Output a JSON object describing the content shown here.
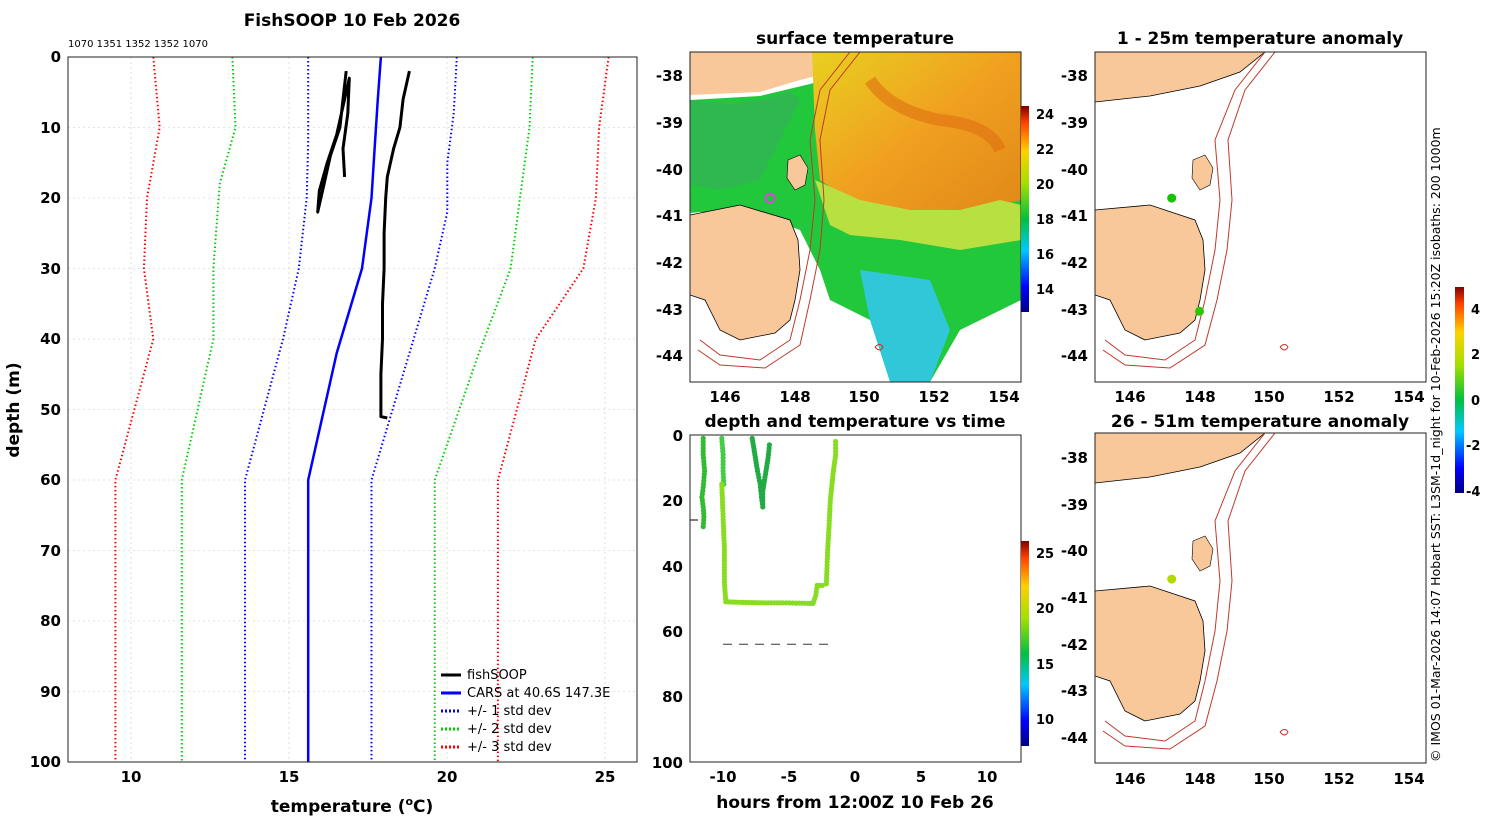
{
  "colors": {
    "fishsoop": "#000000",
    "cars_mean": "#0000ff",
    "std1": "#0000ff",
    "std2": "#00cc00",
    "std3": "#ff0000",
    "land": "#f8c89a",
    "isobath": "#c0392b"
  },
  "profile_chart": {
    "title": "FishSOOP 10 Feb 2026",
    "top_annotation": "1070 1351 1352 1352 1070",
    "xlabel_prefix": "temperature (",
    "xlabel_unit": "o",
    "xlabel_suffix": "C)",
    "ylabel": "depth (m)"
  },
  "surface_map": {
    "title": "surface temperature"
  },
  "time_chart": {
    "title": "depth and temperature vs time",
    "xlabel": "hours from 12:00Z 10 Feb 26"
  },
  "anom_map_top": {
    "title": "1 - 25m temperature anomaly"
  },
  "anom_map_bottom": {
    "title": "26 - 51m temperature anomaly"
  },
  "side_caption": "© IMOS 01-Mar-2026 14:07 Hobart SST: L3SM-1d_night for 10-Feb-2026 15:20Z isobaths: 200  1000m",
  "chart_data": [
    {
      "type": "line",
      "name": "temperature profile",
      "title": "FishSOOP 10 Feb 2026",
      "xlabel": "temperature (oC)",
      "ylabel": "depth (m)",
      "xlim": [
        8,
        26
      ],
      "ylim": [
        100,
        0
      ],
      "x_ticks": [
        10,
        15,
        20,
        25
      ],
      "y_ticks": [
        0,
        10,
        20,
        30,
        40,
        50,
        60,
        70,
        80,
        90,
        100
      ],
      "grid": true,
      "legend_position": "bottom-right",
      "series": [
        {
          "name": "fishSOOP",
          "style": "solid",
          "color": "#000000",
          "width": 3,
          "points": [
            [
              16.8,
              2
            ],
            [
              16.7,
              6
            ],
            [
              16.6,
              10
            ],
            [
              16.3,
              14
            ],
            [
              16.1,
              18
            ],
            [
              15.9,
              22
            ],
            [
              15.95,
              19
            ],
            [
              16.2,
              15
            ],
            [
              16.5,
              11
            ],
            [
              16.7,
              7
            ],
            [
              16.9,
              3
            ],
            [
              16.85,
              8
            ],
            [
              16.7,
              13
            ],
            [
              16.75,
              17
            ]
          ]
        },
        {
          "name": "fishSOOP",
          "style": "solid",
          "color": "#000000",
          "width": 3,
          "points": [
            [
              18.8,
              2
            ],
            [
              18.6,
              6
            ],
            [
              18.5,
              10
            ],
            [
              18.3,
              13
            ],
            [
              18.1,
              17
            ],
            [
              18.05,
              20
            ],
            [
              18.0,
              25
            ],
            [
              18.0,
              30
            ],
            [
              17.95,
              35
            ],
            [
              17.95,
              40
            ],
            [
              17.9,
              45
            ],
            [
              17.9,
              51
            ],
            [
              18.1,
              51.2
            ]
          ]
        },
        {
          "name": "CARS at 40.6S 147.3E",
          "style": "solid",
          "color": "#0000ff",
          "width": 2.5,
          "points": [
            [
              17.9,
              0
            ],
            [
              17.8,
              6
            ],
            [
              17.7,
              13
            ],
            [
              17.6,
              20
            ],
            [
              17.3,
              30
            ],
            [
              16.5,
              42
            ],
            [
              15.6,
              60
            ],
            [
              15.6,
              100
            ]
          ]
        },
        {
          "name": "+/- 1 std dev",
          "style": "dotted",
          "color": "#0000ff",
          "width": 2,
          "points": [
            [
              15.6,
              0
            ],
            [
              15.6,
              12
            ],
            [
              15.55,
              20
            ],
            [
              15.3,
              30
            ],
            [
              14.8,
              40
            ],
            [
              13.6,
              60
            ],
            [
              13.6,
              100
            ]
          ]
        },
        {
          "name": "+/- 1 std dev",
          "style": "dotted",
          "color": "#0000ff",
          "width": 2,
          "points": [
            [
              20.3,
              0
            ],
            [
              20.2,
              8
            ],
            [
              20.0,
              15
            ],
            [
              20.0,
              22
            ],
            [
              19.6,
              30
            ],
            [
              18.6,
              45
            ],
            [
              17.6,
              60
            ],
            [
              17.6,
              100
            ]
          ]
        },
        {
          "name": "+/- 2 std dev",
          "style": "dotted",
          "color": "#00cc00",
          "width": 2,
          "points": [
            [
              13.2,
              0
            ],
            [
              13.3,
              10
            ],
            [
              12.8,
              18
            ],
            [
              12.6,
              30
            ],
            [
              12.6,
              40
            ],
            [
              11.6,
              60
            ],
            [
              11.6,
              100
            ]
          ]
        },
        {
          "name": "+/- 2 std dev",
          "style": "dotted",
          "color": "#00cc00",
          "width": 2,
          "points": [
            [
              22.7,
              0
            ],
            [
              22.6,
              10
            ],
            [
              22.3,
              20
            ],
            [
              22.0,
              30
            ],
            [
              21.0,
              42
            ],
            [
              19.6,
              60
            ],
            [
              19.6,
              100
            ]
          ]
        },
        {
          "name": "+/- 3 std dev",
          "style": "dotted",
          "color": "#ff0000",
          "width": 2,
          "points": [
            [
              10.7,
              0
            ],
            [
              10.9,
              10
            ],
            [
              10.5,
              20
            ],
            [
              10.4,
              30
            ],
            [
              10.7,
              40
            ],
            [
              9.5,
              60
            ],
            [
              9.5,
              100
            ]
          ]
        },
        {
          "name": "+/- 3 std dev",
          "style": "dotted",
          "color": "#ff0000",
          "width": 2,
          "points": [
            [
              25.1,
              0
            ],
            [
              24.8,
              10
            ],
            [
              24.7,
              20
            ],
            [
              24.3,
              30
            ],
            [
              22.8,
              40
            ],
            [
              21.6,
              60
            ],
            [
              21.6,
              100
            ]
          ]
        }
      ],
      "legend": [
        {
          "label": "fishSOOP",
          "style": "solid",
          "color": "#000000"
        },
        {
          "label": "CARS at 40.6S 147.3E",
          "style": "solid",
          "color": "#0000ff"
        },
        {
          "label": "+/- 1 std dev",
          "style": "dotted",
          "color": "#0000ff"
        },
        {
          "label": "+/- 2 std dev",
          "style": "dotted",
          "color": "#00cc00"
        },
        {
          "label": "+/- 3 std dev",
          "style": "dotted",
          "color": "#ff0000"
        }
      ]
    },
    {
      "type": "heatmap",
      "name": "surface temperature map",
      "title": "surface temperature",
      "xlim": [
        145,
        154.5
      ],
      "ylim": [
        -44.5,
        -37.5
      ],
      "x_ticks": [
        146,
        148,
        150,
        152,
        154
      ],
      "y_ticks": [
        -38,
        -39,
        -40,
        -41,
        -42,
        -43,
        -44
      ],
      "colorbar": {
        "min": 12.5,
        "max": 25,
        "ticks": [
          14,
          16,
          18,
          20,
          22,
          24
        ]
      },
      "marker": {
        "lon": 147.3,
        "lat": -40.6,
        "color": "#e040e0",
        "shape": "open circle"
      }
    },
    {
      "type": "scatter",
      "name": "depth and temperature vs time",
      "title": "depth and temperature vs time",
      "xlabel": "hours from 12:00Z 10 Feb 26",
      "xlim": [
        -12.5,
        12.5
      ],
      "ylim": [
        100,
        0
      ],
      "x_ticks": [
        -10,
        -5,
        0,
        5,
        10
      ],
      "y_ticks": [
        0,
        20,
        40,
        60,
        80,
        100
      ],
      "colorbar": {
        "min": 7.5,
        "max": 26,
        "ticks": [
          10,
          15,
          20,
          25
        ]
      },
      "series": [
        {
          "name": "drop 1",
          "color": "#33bb33",
          "points": [
            [
              -11.5,
              1
            ],
            [
              -11.5,
              6
            ],
            [
              -11.4,
              11
            ],
            [
              -11.5,
              16
            ],
            [
              -11.6,
              19
            ],
            [
              -11.5,
              22
            ],
            [
              -11.45,
              25
            ],
            [
              -11.5,
              28
            ]
          ]
        },
        {
          "name": "drop 2",
          "color": "#44cc44",
          "points": [
            [
              -10.1,
              1
            ],
            [
              -10.0,
              6
            ],
            [
              -10.0,
              11
            ],
            [
              -9.95,
              15
            ]
          ]
        },
        {
          "name": "drop 3",
          "color": "#22aa44",
          "points": [
            [
              -7.8,
              1
            ],
            [
              -7.6,
              6
            ],
            [
              -7.4,
              11
            ],
            [
              -7.2,
              15
            ],
            [
              -7.1,
              19
            ],
            [
              -7.0,
              22
            ],
            [
              -7.0,
              17
            ],
            [
              -6.8,
              12
            ],
            [
              -6.6,
              7
            ],
            [
              -6.5,
              3
            ]
          ]
        },
        {
          "name": "haul",
          "color": "#88dd22",
          "points": [
            [
              -10.1,
              15
            ],
            [
              -10.0,
              25
            ],
            [
              -9.9,
              35
            ],
            [
              -9.9,
              45
            ],
            [
              -9.8,
              51
            ],
            [
              -8.5,
              51.2
            ],
            [
              -7,
              51.3
            ],
            [
              -5.5,
              51.3
            ],
            [
              -4.5,
              51.4
            ],
            [
              -3.2,
              51.5
            ],
            [
              -3.0,
              49
            ],
            [
              -2.9,
              46
            ],
            [
              -2.5,
              46
            ],
            [
              -2.2,
              45.5
            ],
            [
              -2.1,
              35
            ],
            [
              -2.0,
              28
            ],
            [
              -1.9,
              20
            ],
            [
              -1.7,
              12
            ],
            [
              -1.5,
              6
            ],
            [
              -1.5,
              2
            ]
          ]
        }
      ],
      "reference_line": {
        "depth": 64,
        "from_hour": -10,
        "to_hour": -2,
        "style": "dashed"
      },
      "extra_tick": {
        "depth": 26,
        "side": "left"
      }
    },
    {
      "type": "scatter",
      "name": "1 - 25m temperature anomaly",
      "title": "1 - 25m temperature anomaly",
      "xlim": [
        145,
        154.5
      ],
      "ylim": [
        -44.5,
        -37.5
      ],
      "x_ticks": [
        146,
        148,
        150,
        152,
        154
      ],
      "y_ticks": [
        -38,
        -39,
        -40,
        -41,
        -42,
        -43,
        -44
      ],
      "points": [
        {
          "lon": 147.2,
          "lat": -40.6,
          "anomaly": 0.2
        },
        {
          "lon": 148.0,
          "lat": -43.0,
          "anomaly": 0.4
        }
      ]
    },
    {
      "type": "scatter",
      "name": "26 - 51m temperature anomaly",
      "title": "26 - 51m temperature anomaly",
      "xlim": [
        145,
        154.5
      ],
      "ylim": [
        -44.5,
        -37.5
      ],
      "x_ticks": [
        146,
        148,
        150,
        152,
        154
      ],
      "y_ticks": [
        -38,
        -39,
        -40,
        -41,
        -42,
        -43,
        -44
      ],
      "points": [
        {
          "lon": 147.2,
          "lat": -40.6,
          "anomaly": 1.6
        }
      ],
      "colorbar": {
        "min": -4,
        "max": 5,
        "ticks": [
          -4,
          -2,
          0,
          2,
          4
        ]
      }
    }
  ]
}
